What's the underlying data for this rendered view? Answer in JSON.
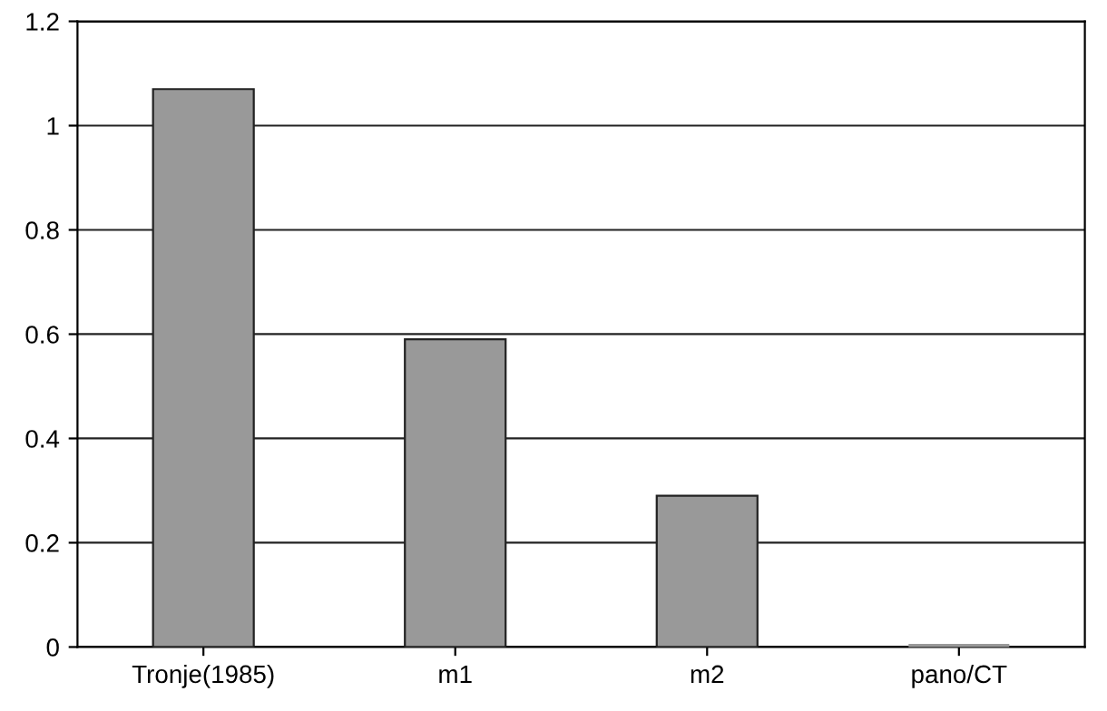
{
  "chart_data": {
    "type": "bar",
    "categories": [
      "Tronje(1985)",
      "m1",
      "m2",
      "pano/CT"
    ],
    "values": [
      1.07,
      0.59,
      0.29,
      0
    ],
    "color": "#999999",
    "ylim": [
      0,
      1.2
    ],
    "yticks": [
      0,
      {
        "value": 0.2,
        "label": "0.2"
      },
      {
        "value": 0.4,
        "label": "0.4"
      },
      {
        "value": 0.6,
        "label": "0.6"
      },
      {
        "value": 0.8,
        "label": "0.8"
      },
      1,
      {
        "value": 1.2,
        "label": "1.2"
      }
    ],
    "grid": "y"
  }
}
